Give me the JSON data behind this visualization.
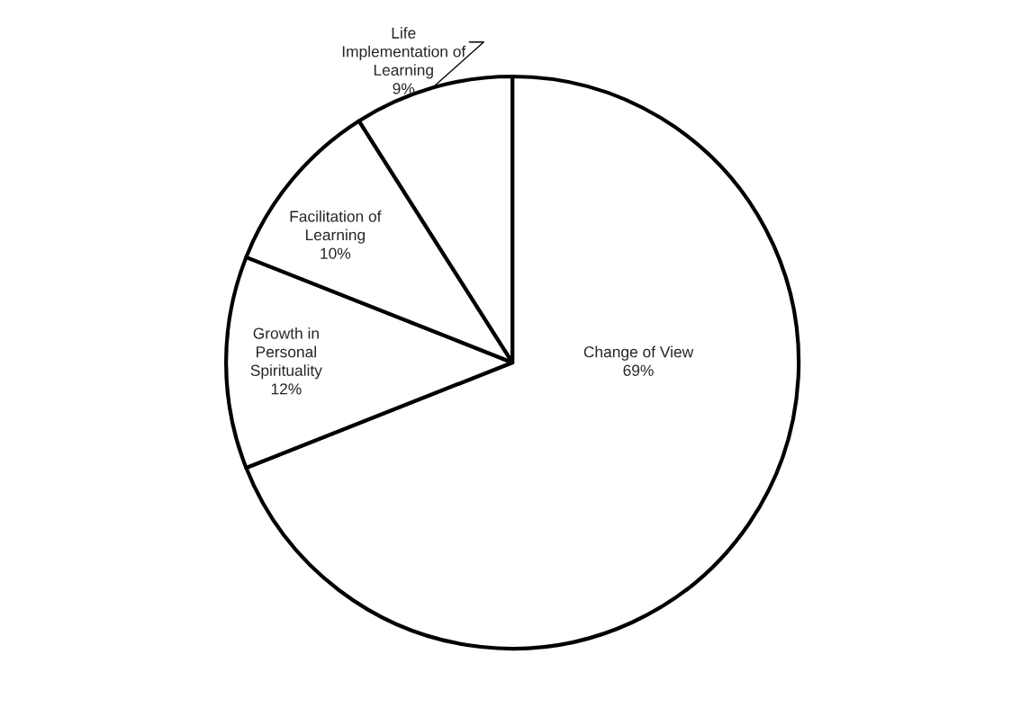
{
  "chart_data": {
    "type": "pie",
    "categories": [
      "Change of View",
      "Growth in\nPersonal\nSpirituality",
      "Facilitation of\nLearning",
      "Life\nImplementation of\nLearning"
    ],
    "values": [
      69,
      12,
      10,
      9
    ],
    "value_labels": [
      "69%",
      "12%",
      "10%",
      "9%"
    ],
    "colors": [
      "#ffffff",
      "#ffffff",
      "#ffffff",
      "#ffffff"
    ],
    "legend": false
  }
}
